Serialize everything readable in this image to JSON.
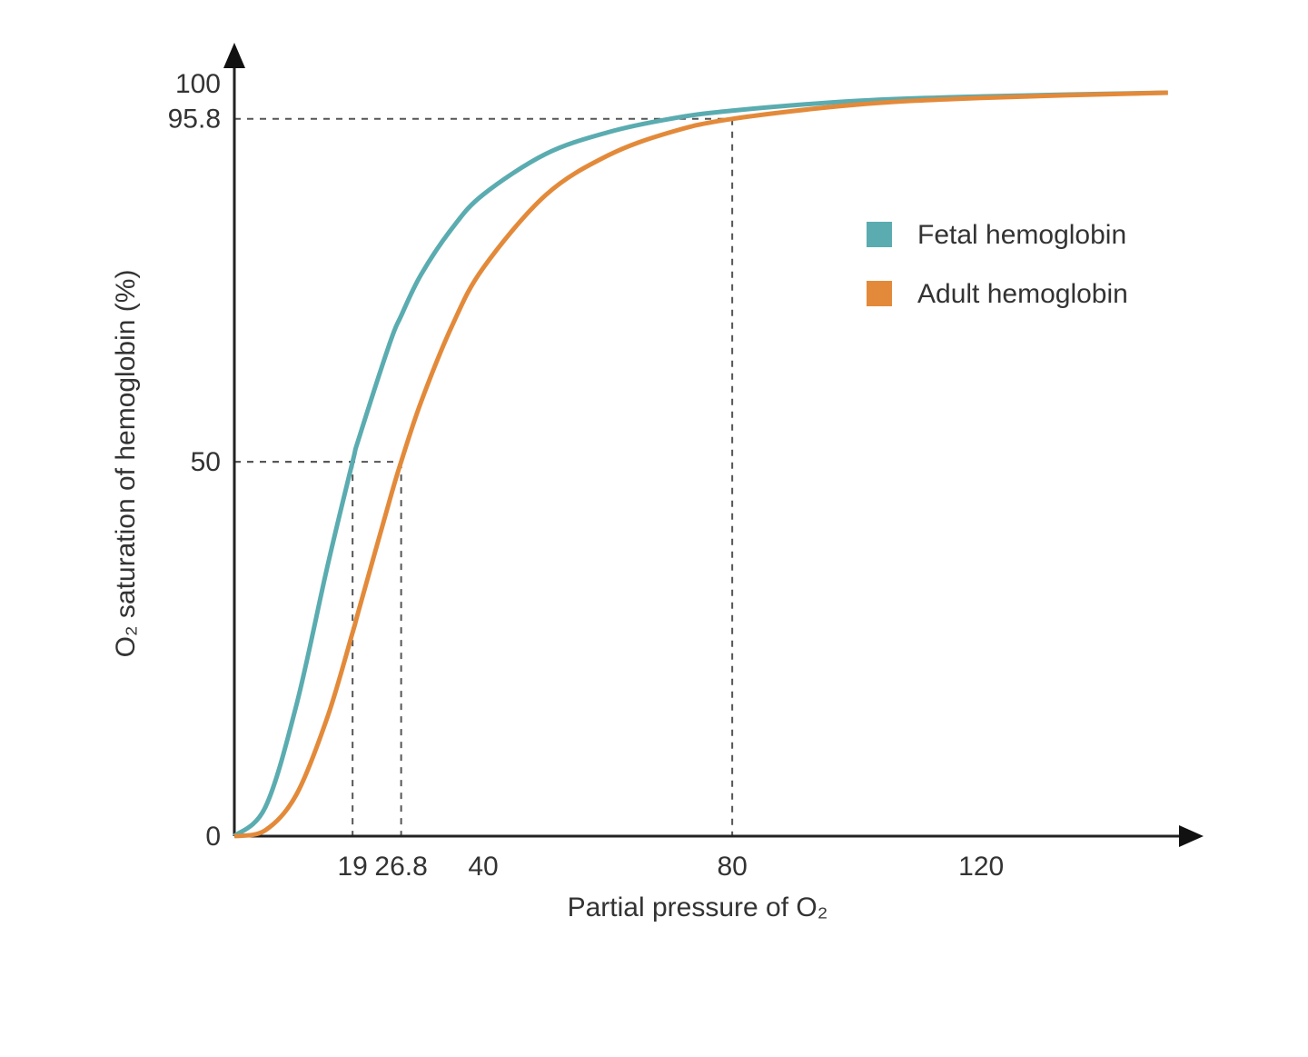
{
  "chart_data": {
    "type": "line",
    "x_label": "Partial pressure of O₂",
    "y_label": "O₂ saturation of hemoglobin (%)",
    "x": [
      0,
      5,
      10,
      15,
      19,
      20,
      25,
      26.8,
      30,
      35,
      40,
      50,
      60,
      70,
      80,
      100,
      120,
      150
    ],
    "series": [
      {
        "name": "Fetal hemoglobin",
        "color": "#5aacb0",
        "values": [
          0,
          3.9,
          17.6,
          36.2,
          50,
          53.1,
          65.9,
          69.5,
          75.0,
          81.2,
          85.7,
          91.1,
          94.0,
          95.8,
          96.9,
          98.2,
          98.8,
          99.3
        ]
      },
      {
        "name": "Adult hemoglobin",
        "color": "#e38a3a",
        "values": [
          0,
          0.8,
          5.6,
          16.0,
          27.2,
          30.2,
          45.0,
          50,
          58.0,
          68.2,
          75.9,
          85.6,
          90.9,
          94.0,
          95.8,
          97.7,
          98.6,
          99.3
        ]
      }
    ],
    "xlim": [
      0,
      155
    ],
    "ylim": [
      0,
      105
    ],
    "xticks": [
      19,
      26.8,
      40,
      80,
      120
    ],
    "yticks": [
      0,
      50,
      95.8,
      100
    ],
    "guides": [
      {
        "x": 19,
        "y": 50
      },
      {
        "x": 26.8,
        "y": 50
      },
      {
        "x": 80,
        "y": 95.8
      }
    ],
    "legend": "right"
  }
}
